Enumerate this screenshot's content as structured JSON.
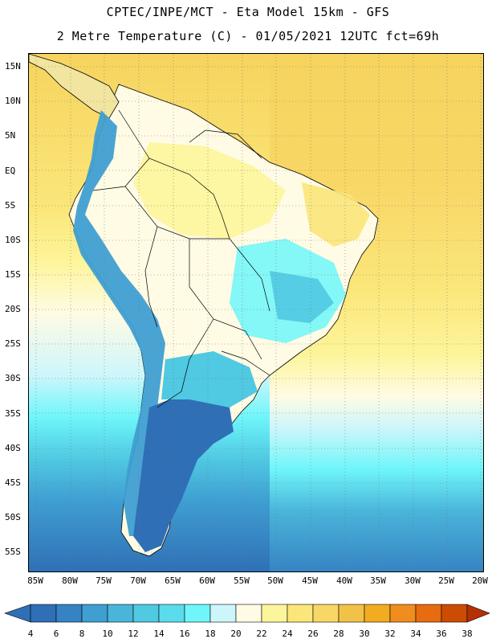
{
  "header": {
    "line1": "CPTEC/INPE/MCT -  Eta Model 15km - GFS",
    "line2": "2 Metre Temperature (C) - 01/05/2021 12UTC fct=69h"
  },
  "axes": {
    "lat_labels": [
      "15N",
      "10N",
      "5N",
      "EQ",
      "5S",
      "10S",
      "15S",
      "20S",
      "25S",
      "30S",
      "35S",
      "40S",
      "45S",
      "50S",
      "55S"
    ],
    "lon_labels": [
      "85W",
      "80W",
      "75W",
      "70W",
      "65W",
      "60W",
      "55W",
      "50W",
      "45W",
      "40W",
      "35W",
      "30W",
      "25W",
      "20W"
    ]
  },
  "legend": {
    "values": [
      "4",
      "6",
      "8",
      "10",
      "12",
      "14",
      "16",
      "18",
      "20",
      "22",
      "24",
      "26",
      "28",
      "30",
      "32",
      "34",
      "36",
      "38"
    ],
    "colors": [
      "#2f6fb6",
      "#3583c3",
      "#3f9fd2",
      "#4ab5da",
      "#50c9e2",
      "#5bdced",
      "#6ef6fa",
      "#cdf6fb",
      "#fffbe4",
      "#fdf59a",
      "#fbe67a",
      "#f8d766",
      "#f2c248",
      "#f2ac20",
      "#ef8d1e",
      "#e76b10",
      "#cc4c04",
      "#b33103"
    ]
  }
}
